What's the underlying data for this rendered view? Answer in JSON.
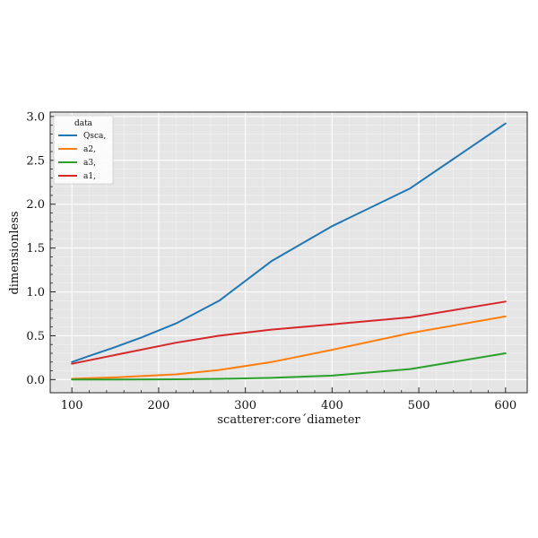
{
  "chart_data": {
    "type": "line",
    "xlabel": "scatterer:core´diameter",
    "ylabel": "dimensionless",
    "xlim": [
      75,
      625
    ],
    "ylim": [
      -0.15,
      3.05
    ],
    "x_ticks": [
      100,
      200,
      300,
      400,
      500,
      600
    ],
    "x_tick_labels": [
      "100",
      "200",
      "300",
      "400",
      "500",
      "600"
    ],
    "y_ticks": [
      0.0,
      0.5,
      1.0,
      1.5,
      2.0,
      2.5,
      3.0
    ],
    "y_tick_labels": [
      "0.0",
      "0.5",
      "1.0",
      "1.5",
      "2.0",
      "2.5",
      "3.0"
    ],
    "grid": true,
    "legend": {
      "title": "data",
      "placement": "top-left"
    },
    "series": [
      {
        "name": "Qsca,",
        "color": "#1f77b4",
        "x": [
          100,
          120,
          150,
          180,
          220,
          270,
          330,
          400,
          490,
          600
        ],
        "values": [
          0.2,
          0.27,
          0.37,
          0.48,
          0.64,
          0.9,
          1.35,
          1.75,
          2.18,
          2.92
        ]
      },
      {
        "name": "a2,",
        "color": "#ff7f0e",
        "x": [
          100,
          150,
          220,
          270,
          330,
          400,
          490,
          600
        ],
        "values": [
          0.01,
          0.025,
          0.06,
          0.11,
          0.2,
          0.34,
          0.53,
          0.72
        ]
      },
      {
        "name": "a3,",
        "color": "#2ca02c",
        "x": [
          100,
          150,
          220,
          270,
          330,
          400,
          490,
          600
        ],
        "values": [
          0.0,
          0.0,
          0.003,
          0.008,
          0.02,
          0.045,
          0.12,
          0.3
        ]
      },
      {
        "name": "a1,",
        "color": "#d62728",
        "x": [
          100,
          150,
          220,
          270,
          330,
          400,
          490,
          600
        ],
        "values": [
          0.18,
          0.28,
          0.42,
          0.5,
          0.57,
          0.63,
          0.71,
          0.89
        ]
      }
    ]
  }
}
